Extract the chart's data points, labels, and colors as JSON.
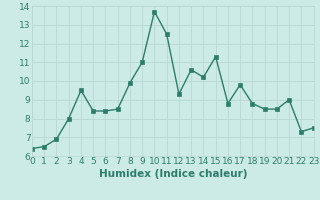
{
  "x": [
    0,
    1,
    2,
    3,
    4,
    5,
    6,
    7,
    8,
    9,
    10,
    11,
    12,
    13,
    14,
    15,
    16,
    17,
    18,
    19,
    20,
    21,
    22,
    23
  ],
  "y": [
    6.4,
    6.5,
    6.9,
    8.0,
    9.5,
    8.4,
    8.4,
    8.5,
    9.9,
    11.0,
    13.7,
    12.5,
    9.3,
    10.6,
    10.2,
    11.3,
    8.8,
    9.8,
    8.8,
    8.5,
    8.5,
    9.0,
    7.3,
    7.5
  ],
  "xlabel": "Humidex (Indice chaleur)",
  "xlim": [
    0,
    23
  ],
  "ylim": [
    6,
    14
  ],
  "yticks": [
    6,
    7,
    8,
    9,
    10,
    11,
    12,
    13,
    14
  ],
  "xticks": [
    0,
    1,
    2,
    3,
    4,
    5,
    6,
    7,
    8,
    9,
    10,
    11,
    12,
    13,
    14,
    15,
    16,
    17,
    18,
    19,
    20,
    21,
    22,
    23
  ],
  "line_color": "#2d7d6b",
  "bg_color": "#cceae6",
  "grid_color": "#b8d8d4",
  "tick_label_fontsize": 6.5,
  "xlabel_fontsize": 7.5
}
